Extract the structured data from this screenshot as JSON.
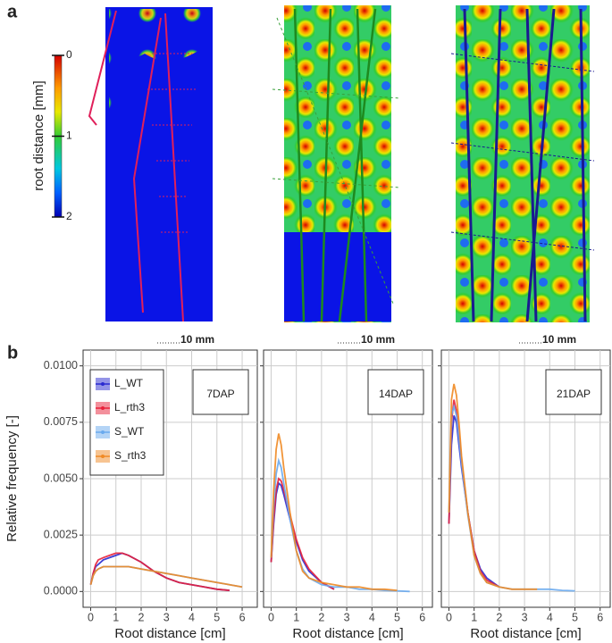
{
  "panel_a": {
    "label": "a",
    "colorbar": {
      "title": "root distance [mm]",
      "ticks": [
        0,
        1,
        2
      ]
    },
    "scale_bars": [
      "10 mm",
      "10 mm",
      "10 mm"
    ]
  },
  "panel_b": {
    "label": "b"
  },
  "chart_data": [
    {
      "type": "line",
      "ylabel": "Relative frequency [-]",
      "xlabel": "Root distance [cm]",
      "annotation": "7DAP",
      "legend": "top-left",
      "grid": true,
      "xlim": [
        -0.3,
        6.6
      ],
      "ylim": [
        -0.0007,
        0.0107
      ],
      "xticks": [
        0,
        1,
        2,
        3,
        4,
        5,
        6
      ],
      "yticks": [
        {
          "value": 0,
          "label": "0.0000"
        },
        {
          "value": 0.0025,
          "label": "0.0025"
        },
        {
          "value": 0.005,
          "label": "0.0050"
        },
        {
          "value": 0.0075,
          "label": "0.0075"
        },
        {
          "value": 0.01,
          "label": "0.0100"
        }
      ],
      "x": [
        0,
        0.1,
        0.2,
        0.3,
        0.5,
        0.75,
        1,
        1.25,
        1.5,
        2,
        2.5,
        3,
        3.5,
        4,
        4.5,
        5,
        5.5,
        6
      ],
      "series": [
        {
          "name": "L_WT",
          "color": "#2a2ad0",
          "values": [
            0.0003,
            0.0008,
            0.0011,
            0.0012,
            0.0014,
            0.0015,
            0.0016,
            0.0017,
            0.0016,
            0.0013,
            0.0009,
            0.0006,
            0.0004,
            0.0003,
            0.0002,
            0.0001,
            5e-05,
            null
          ]
        },
        {
          "name": "L_rth3",
          "color": "#e8213a",
          "values": [
            0.0003,
            0.0008,
            0.0012,
            0.0014,
            0.0015,
            0.0016,
            0.0017,
            0.0017,
            0.0016,
            0.0013,
            0.0009,
            0.0006,
            0.0004,
            0.0003,
            0.0002,
            0.0001,
            5e-05,
            null
          ]
        },
        {
          "name": "S_WT",
          "color": "#6aaaee",
          "values": [
            0.0003,
            0.0007,
            0.0009,
            0.001,
            0.0011,
            0.0011,
            0.0011,
            0.0011,
            0.0011,
            0.001,
            0.0009,
            0.0008,
            0.0007,
            0.0006,
            0.0005,
            0.0004,
            0.0003,
            0.0002
          ]
        },
        {
          "name": "S_rth3",
          "color": "#f08a24",
          "values": [
            0.0003,
            0.0007,
            0.0009,
            0.001,
            0.0011,
            0.0011,
            0.0011,
            0.0011,
            0.0011,
            0.001,
            0.0009,
            0.0008,
            0.0007,
            0.0006,
            0.0005,
            0.0004,
            0.0003,
            0.0002
          ]
        }
      ]
    },
    {
      "type": "line",
      "xlabel": "Root distance [cm]",
      "annotation": "14DAP",
      "grid": true,
      "xlim": [
        -0.3,
        6.4
      ],
      "ylim": [
        -0.0007,
        0.0107
      ],
      "xticks": [
        0,
        1,
        2,
        3,
        4,
        5,
        6
      ],
      "yticks": [
        0,
        0.0025,
        0.005,
        0.0075,
        0.01
      ],
      "x": [
        0,
        0.1,
        0.2,
        0.3,
        0.4,
        0.5,
        0.75,
        1,
        1.25,
        1.5,
        2,
        2.5,
        3,
        3.5,
        4,
        4.5,
        5,
        5.5,
        6
      ],
      "series": [
        {
          "name": "L_WT",
          "color": "#2a2ad0",
          "values": [
            0.0013,
            0.003,
            0.0043,
            0.0048,
            0.0047,
            0.0043,
            0.0032,
            0.0022,
            0.0014,
            0.0009,
            0.0004,
            0.0001,
            null,
            null,
            null,
            null,
            null,
            null,
            null
          ]
        },
        {
          "name": "L_rth3",
          "color": "#e8213a",
          "values": [
            0.0013,
            0.0032,
            0.0045,
            0.005,
            0.0049,
            0.0045,
            0.0034,
            0.0023,
            0.0015,
            0.001,
            0.0004,
            0.0001,
            null,
            null,
            null,
            null,
            null,
            null,
            null
          ]
        },
        {
          "name": "S_WT",
          "color": "#6aaaee",
          "values": [
            0.0015,
            0.0038,
            0.0052,
            0.0058,
            0.0055,
            0.0048,
            0.0032,
            0.0018,
            0.001,
            0.0006,
            0.0003,
            0.0002,
            0.0002,
            0.0001,
            0.0001,
            5e-05,
            3e-05,
            0,
            null
          ]
        },
        {
          "name": "S_rth3",
          "color": "#f08a24",
          "values": [
            0.0015,
            0.0045,
            0.0063,
            0.007,
            0.0065,
            0.0055,
            0.0035,
            0.0018,
            0.0009,
            0.0006,
            0.0004,
            0.0003,
            0.0002,
            0.0002,
            0.0001,
            0.0001,
            5e-05,
            null,
            null
          ]
        }
      ]
    },
    {
      "type": "line",
      "xlabel": "Root distance [cm]",
      "annotation": "21DAP",
      "grid": true,
      "xlim": [
        -0.3,
        6.4
      ],
      "ylim": [
        -0.0007,
        0.0107
      ],
      "xticks": [
        0,
        1,
        2,
        3,
        4,
        5,
        6
      ],
      "yticks": [
        0,
        0.0025,
        0.005,
        0.0075,
        0.01
      ],
      "x": [
        0,
        0.1,
        0.2,
        0.3,
        0.4,
        0.5,
        0.75,
        1,
        1.25,
        1.5,
        2,
        2.5,
        3,
        3.5,
        4,
        4.5,
        5,
        5.5,
        6
      ],
      "series": [
        {
          "name": "L_WT",
          "color": "#2a2ad0",
          "values": [
            0.003,
            0.0065,
            0.0078,
            0.0075,
            0.0065,
            0.0055,
            0.0035,
            0.0018,
            0.001,
            0.0006,
            0.0002,
            null,
            null,
            null,
            null,
            null,
            null,
            null,
            null
          ]
        },
        {
          "name": "L_rth3",
          "color": "#e8213a",
          "values": [
            0.003,
            0.0075,
            0.0085,
            0.008,
            0.007,
            0.0058,
            0.0035,
            0.0018,
            0.0009,
            0.0005,
            0.0002,
            null,
            null,
            null,
            null,
            null,
            null,
            null,
            null
          ]
        },
        {
          "name": "S_WT",
          "color": "#6aaaee",
          "values": [
            0.0035,
            0.0078,
            0.0082,
            0.0078,
            0.0068,
            0.0057,
            0.0034,
            0.0016,
            0.0008,
            0.0004,
            0.0002,
            0.0001,
            0.0001,
            0.0001,
            0.0001,
            5e-05,
            3e-05,
            null,
            null
          ]
        },
        {
          "name": "S_rth3",
          "color": "#f08a24",
          "values": [
            0.0035,
            0.0085,
            0.0092,
            0.0087,
            0.0075,
            0.006,
            0.0035,
            0.0016,
            0.0008,
            0.0004,
            0.0002,
            0.0001,
            0.0001,
            0.0001,
            null,
            null,
            null,
            null,
            null
          ]
        }
      ]
    }
  ]
}
